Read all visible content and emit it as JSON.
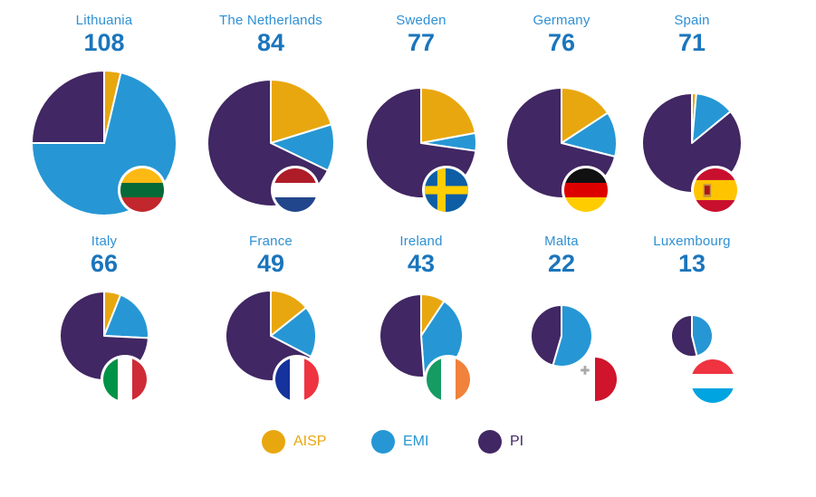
{
  "chart_data": {
    "type": "pie",
    "title": "",
    "layout_hint": "small-multiples, 2 rows x 5 columns, pie area scaled by total, country flag badge at bottom-right of each pie",
    "series_order": [
      "AISP",
      "EMI",
      "PI"
    ],
    "legend": [
      {
        "label": "AISP",
        "color": "#E8A70F"
      },
      {
        "label": "EMI",
        "color": "#2697D4"
      },
      {
        "label": "PI",
        "color": "#412763"
      }
    ],
    "countries": [
      {
        "name": "Lithuania",
        "total": 108,
        "values": {
          "AISP": 4,
          "EMI": 77,
          "PI": 27
        },
        "flag": "lithuania"
      },
      {
        "name": "The Netherlands",
        "total": 84,
        "values": {
          "AISP": 17,
          "EMI": 10,
          "PI": 57
        },
        "flag": "netherlands"
      },
      {
        "name": "Sweden",
        "total": 77,
        "values": {
          "AISP": 17,
          "EMI": 4,
          "PI": 56
        },
        "flag": "sweden"
      },
      {
        "name": "Germany",
        "total": 76,
        "values": {
          "AISP": 12,
          "EMI": 10,
          "PI": 54
        },
        "flag": "germany"
      },
      {
        "name": "Spain",
        "total": 71,
        "values": {
          "AISP": 1,
          "EMI": 9,
          "PI": 61
        },
        "flag": "spain"
      },
      {
        "name": "Italy",
        "total": 66,
        "values": {
          "AISP": 4,
          "EMI": 13,
          "PI": 49
        },
        "flag": "italy"
      },
      {
        "name": "France",
        "total": 49,
        "values": {
          "AISP": 7,
          "EMI": 9,
          "PI": 33
        },
        "flag": "france"
      },
      {
        "name": "Ireland",
        "total": 43,
        "values": {
          "AISP": 4,
          "EMI": 17,
          "PI": 22
        },
        "flag": "ireland"
      },
      {
        "name": "Malta",
        "total": 22,
        "values": {
          "AISP": 0,
          "EMI": 12,
          "PI": 10
        },
        "flag": "malta"
      },
      {
        "name": "Luxembourg",
        "total": 13,
        "values": {
          "AISP": 0,
          "EMI": 6,
          "PI": 7
        },
        "flag": "luxembourg"
      }
    ]
  },
  "text_colors": {
    "country_name": "#2E90D4",
    "country_total": "#1B75BC"
  },
  "flag_palette": {
    "lithuania": {
      "type": "h3",
      "colors": [
        "#FDB913",
        "#046A38",
        "#C1272D"
      ]
    },
    "netherlands": {
      "type": "h3",
      "colors": [
        "#AE1C28",
        "#FFFFFF",
        "#21468B"
      ]
    },
    "sweden": {
      "type": "nordic-cross",
      "field": "#0D5EA5",
      "cross": "#FFCD00"
    },
    "germany": {
      "type": "h3",
      "colors": [
        "#111111",
        "#DD0000",
        "#FFCC00"
      ]
    },
    "spain": {
      "type": "spain",
      "red": "#C8102E",
      "yellow": "#FFC400",
      "emblem": [
        "#C19040",
        "#AD1519"
      ]
    },
    "italy": {
      "type": "v3",
      "colors": [
        "#009246",
        "#FFFFFF",
        "#CE2B37"
      ]
    },
    "france": {
      "type": "v3",
      "colors": [
        "#16329C",
        "#FFFFFF",
        "#EF3340"
      ]
    },
    "ireland": {
      "type": "v3",
      "colors": [
        "#169B62",
        "#FFFFFF",
        "#F0823C"
      ]
    },
    "malta": {
      "type": "malta",
      "white": "#FFFFFF",
      "red": "#CF142B",
      "cross": "#A8A8A8"
    },
    "luxembourg": {
      "type": "h3",
      "colors": [
        "#EF3340",
        "#FFFFFF",
        "#00A4E0"
      ]
    }
  }
}
